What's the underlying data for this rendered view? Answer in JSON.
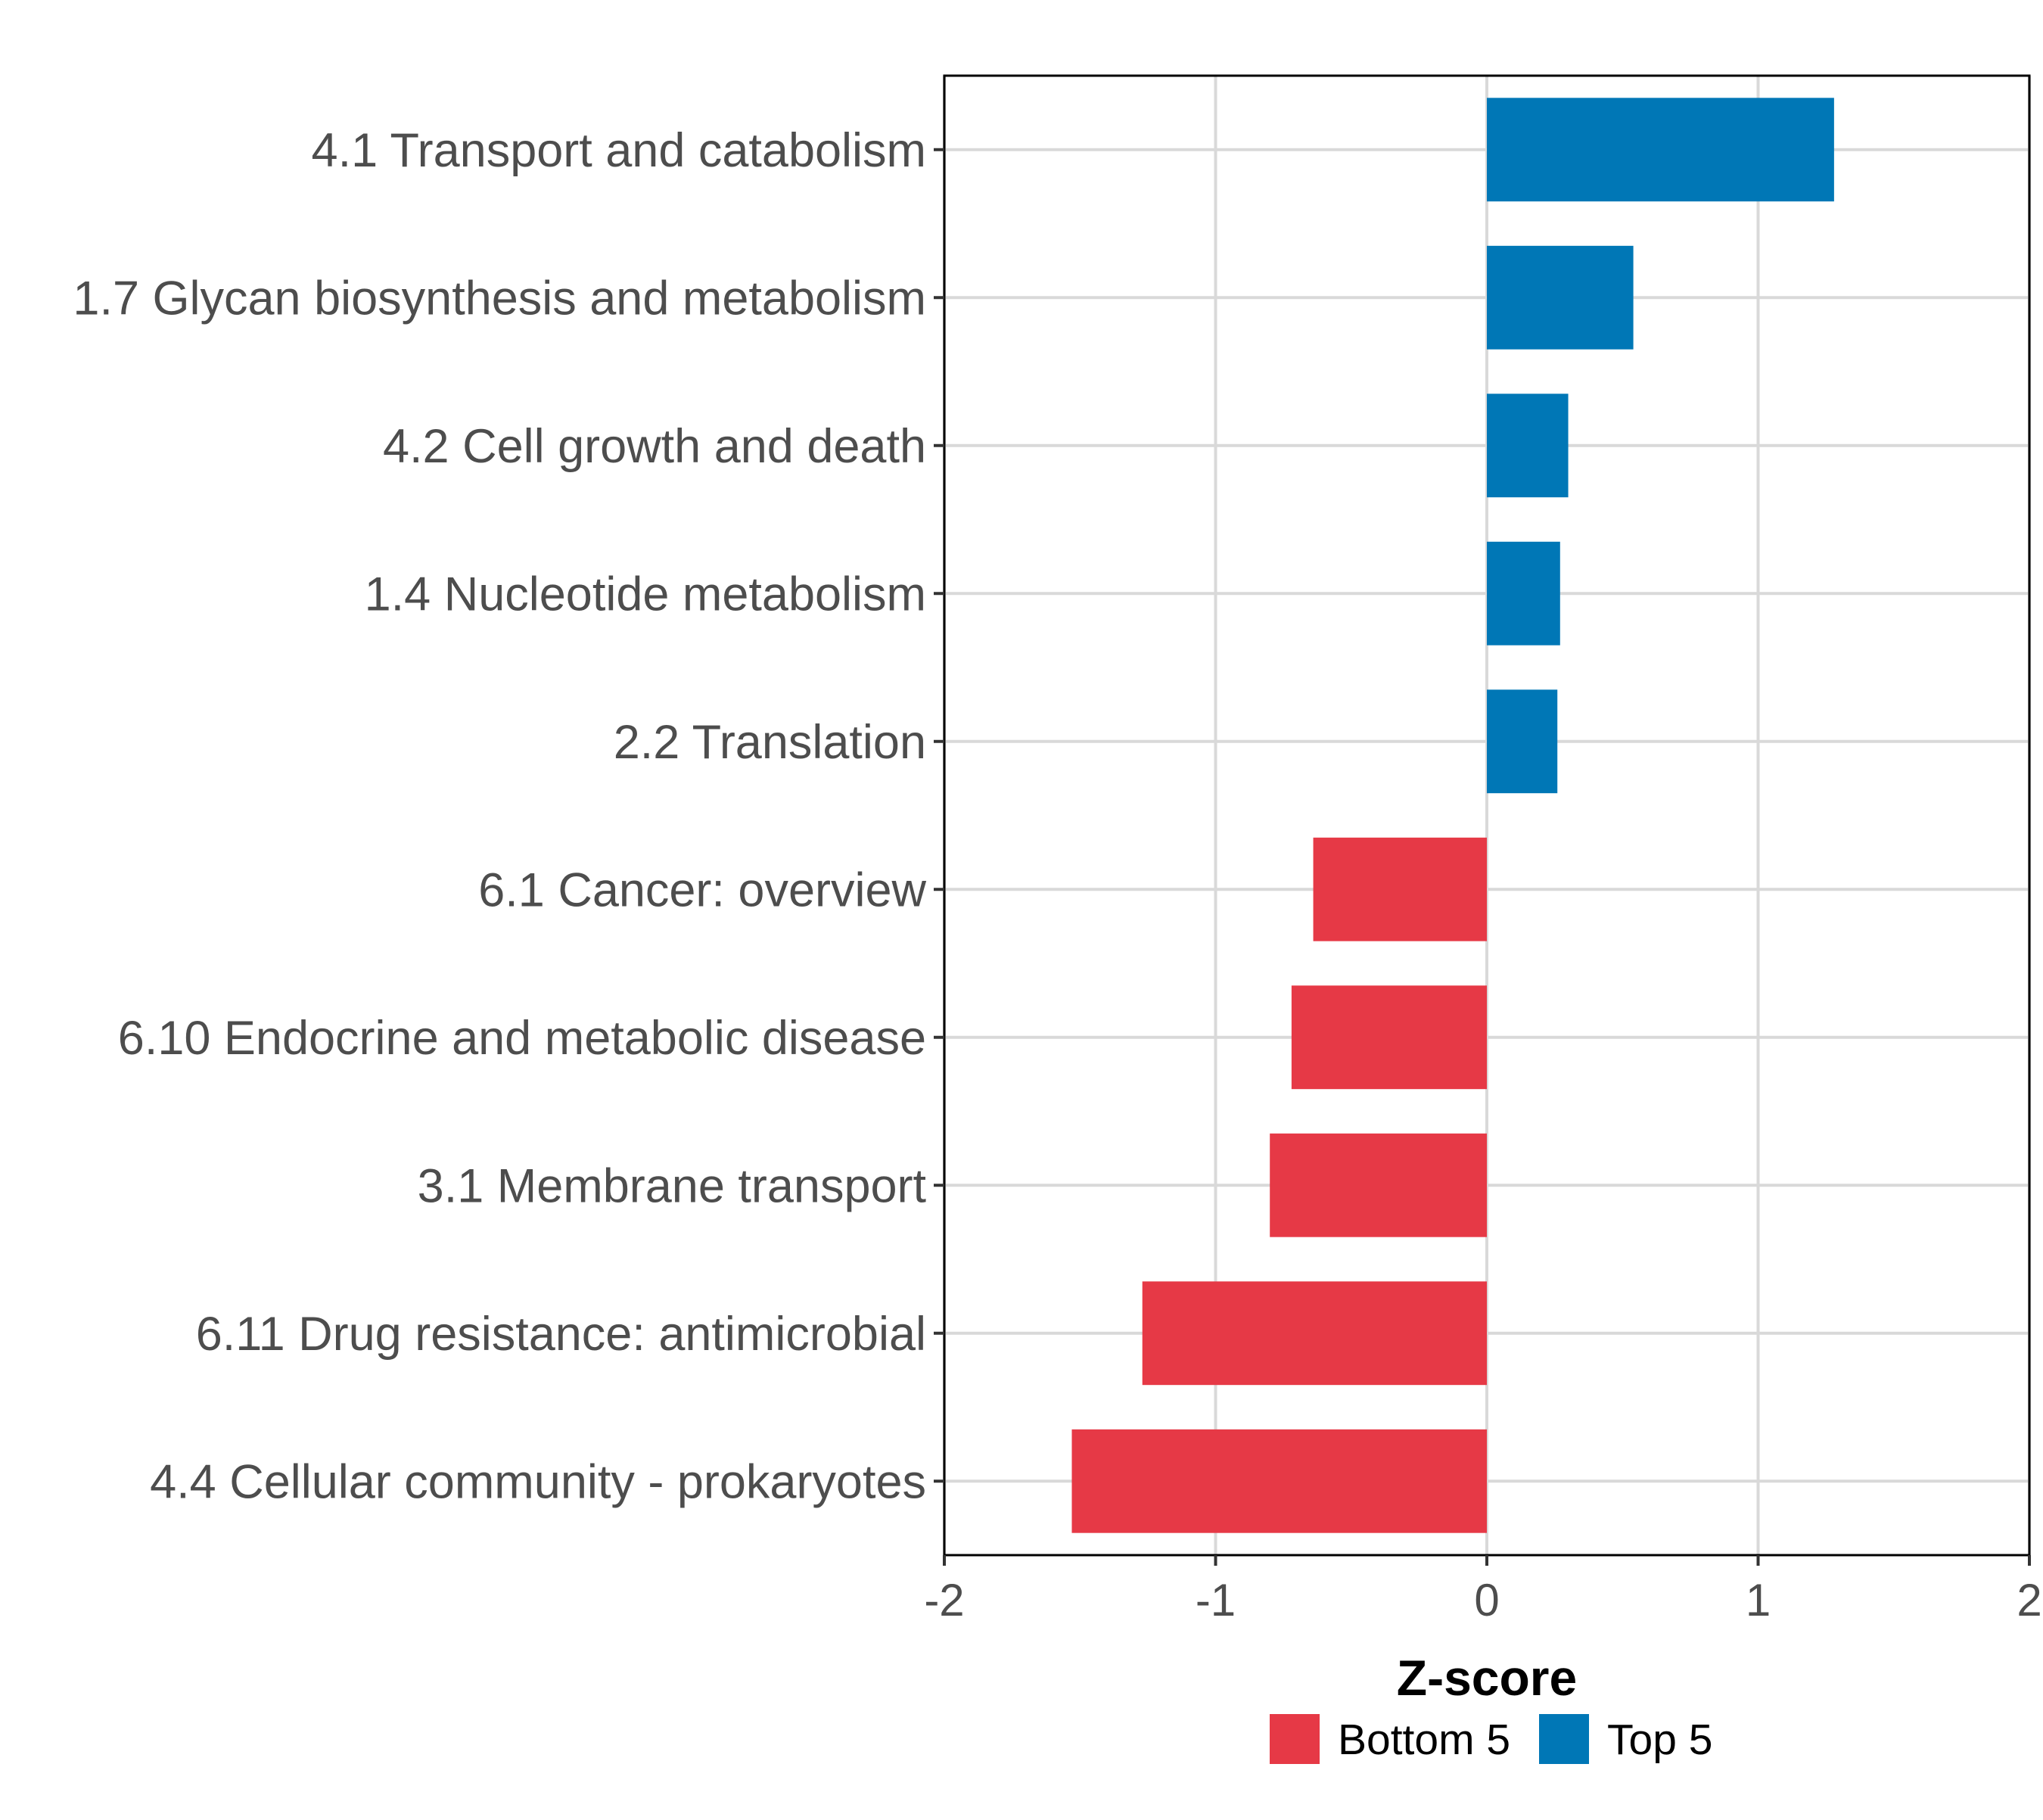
{
  "chart_data": {
    "type": "bar",
    "orientation": "horizontal",
    "title": "",
    "xlabel": "Z-score",
    "ylabel": "",
    "xlim": [
      -2,
      2
    ],
    "xticks": [
      -2,
      -1,
      0,
      1,
      2
    ],
    "xtick_labels": [
      "-2",
      "-1",
      "0",
      "1",
      "2"
    ],
    "grid": true,
    "legend_position": "bottom",
    "categories": [
      "4.1 Transport and catabolism",
      "1.7 Glycan biosynthesis and metabolism",
      "4.2 Cell growth and death",
      "1.4 Nucleotide metabolism",
      "2.2 Translation",
      "6.1 Cancer: overview",
      "6.10 Endocrine and metabolic disease",
      "3.1 Membrane transport",
      "6.11 Drug resistance: antimicrobial",
      "4.4 Cellular community - prokaryotes"
    ],
    "values": [
      1.28,
      0.54,
      0.3,
      0.27,
      0.26,
      -0.64,
      -0.72,
      -0.8,
      -1.27,
      -1.53
    ],
    "groups": [
      "Top 5",
      "Top 5",
      "Top 5",
      "Top 5",
      "Top 5",
      "Bottom 5",
      "Bottom 5",
      "Bottom 5",
      "Bottom 5",
      "Bottom 5"
    ],
    "legend": [
      {
        "name": "Bottom 5",
        "color": "#E63946"
      },
      {
        "name": "Top 5",
        "color": "#0077B6"
      }
    ]
  }
}
